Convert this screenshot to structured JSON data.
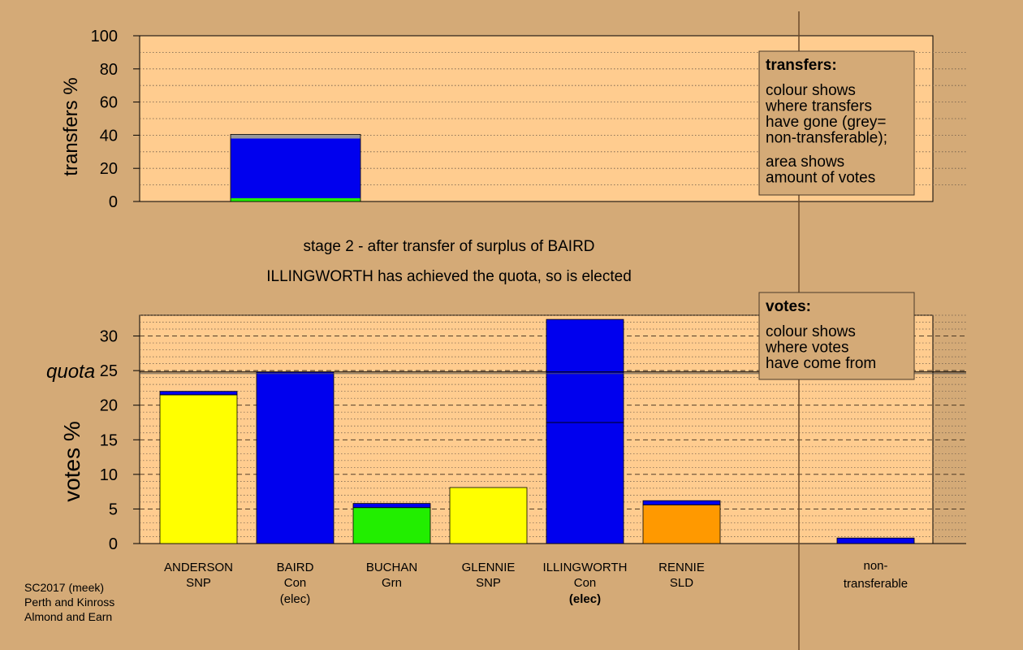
{
  "chart_data": [
    {
      "type": "bar",
      "ylabel": "transfers %",
      "ylim": [
        0,
        100
      ],
      "yticks": [
        0,
        20,
        40,
        60,
        80,
        100
      ],
      "categories": [
        "BAIRD"
      ],
      "stacks": [
        {
          "category": "BAIRD",
          "segments": [
            {
              "party": "Grn",
              "value": 2.0,
              "color": "#22ee00"
            },
            {
              "party": "Con",
              "value": 36.0,
              "color": "#0000ee"
            },
            {
              "party": "non-transferable",
              "value": 2.5,
              "color": "#999999"
            }
          ]
        }
      ],
      "legend": {
        "title": "transfers:",
        "lines1": [
          "colour shows",
          "where transfers",
          "have gone (grey=",
          "non-transferable);"
        ],
        "lines2": [
          "area shows",
          "amount of votes"
        ],
        "placement": "top-right"
      }
    },
    {
      "type": "bar",
      "ylabel": "votes %",
      "ylim": [
        0,
        33
      ],
      "yticks": [
        0,
        5,
        10,
        15,
        20,
        25,
        30
      ],
      "quota": 24.8,
      "quota_label": "quota",
      "candidates": [
        {
          "name": "ANDERSON",
          "party": "SNP",
          "status": "",
          "base": 21.5,
          "transfer": 0.5,
          "color": "#ffff00"
        },
        {
          "name": "BAIRD",
          "party": "Con",
          "status": "(elec)",
          "base": 24.8,
          "transfer": 0,
          "color": "#0000ee"
        },
        {
          "name": "BUCHAN",
          "party": "Grn",
          "status": "",
          "base": 5.2,
          "transfer": 0.6,
          "color": "#22ee00"
        },
        {
          "name": "GLENNIE",
          "party": "SNP",
          "status": "",
          "base": 8.1,
          "transfer": 0,
          "color": "#ffff00"
        },
        {
          "name": "ILLINGWORTH",
          "party": "Con",
          "status": "(elec)",
          "base": 17.5,
          "transfer": 14.9,
          "color": "#0000ee"
        },
        {
          "name": "RENNIE",
          "party": "SLD",
          "status": "",
          "base": 5.6,
          "transfer": 0.6,
          "color": "#ff9900"
        }
      ],
      "nontransferable": {
        "label1": "non-",
        "label2": "transferable",
        "value": 0.8,
        "color": "#0000ee"
      },
      "legend": {
        "title": "votes:",
        "lines": [
          "colour shows",
          "where votes",
          "have come from"
        ],
        "placement": "top-right"
      }
    }
  ],
  "stage_title": "stage 2 - after transfer of surplus of BAIRD",
  "stage_subtitle": "ILLINGWORTH has achieved the quota, so is elected",
  "footer": [
    "SC2017 (meek)",
    "Perth and Kinross",
    "Almond and Earn"
  ],
  "colors": {
    "background": "#d4aa77",
    "plot_bg": "#ffcc8f",
    "transfer_color": "#0000ee"
  }
}
